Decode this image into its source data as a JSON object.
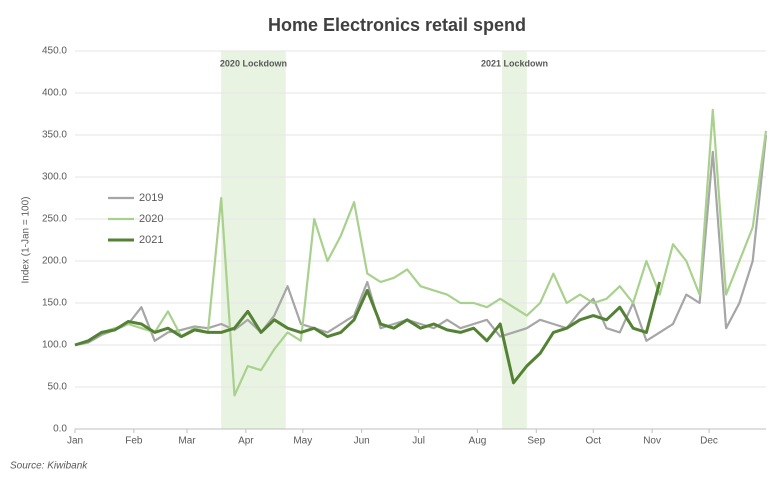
{
  "chart_data": {
    "type": "line",
    "title": "Home Electronics retail spend",
    "y_label": "Index (1-Jan = 100)",
    "source": "Source: Kiwibank",
    "x": [
      1,
      8,
      15,
      22,
      29,
      36,
      43,
      50,
      57,
      64,
      71,
      78,
      85,
      92,
      99,
      106,
      113,
      120,
      127,
      134,
      141,
      148,
      155,
      162,
      169,
      176,
      183,
      190,
      197,
      204,
      211,
      218,
      225,
      232,
      239,
      246,
      253,
      260,
      267,
      274,
      281,
      288,
      295,
      302,
      309,
      316,
      323,
      330,
      337,
      344,
      351,
      358,
      365
    ],
    "xlim": [
      1,
      365
    ],
    "xticks": [
      {
        "value": 1,
        "label": "Jan"
      },
      {
        "value": 32,
        "label": "Feb"
      },
      {
        "value": 60,
        "label": "Mar"
      },
      {
        "value": 91,
        "label": "Apr"
      },
      {
        "value": 121,
        "label": "May"
      },
      {
        "value": 152,
        "label": "Jun"
      },
      {
        "value": 182,
        "label": "Jul"
      },
      {
        "value": 213,
        "label": "Aug"
      },
      {
        "value": 244,
        "label": "Sep"
      },
      {
        "value": 274,
        "label": "Oct"
      },
      {
        "value": 305,
        "label": "Nov"
      },
      {
        "value": 335,
        "label": "Dec"
      }
    ],
    "ylim": [
      0,
      450
    ],
    "yticks": [
      {
        "value": 0,
        "label": "0.0"
      },
      {
        "value": 50,
        "label": "50.0"
      },
      {
        "value": 100,
        "label": "100.0"
      },
      {
        "value": 150,
        "label": "150.0"
      },
      {
        "value": 200,
        "label": "200.0"
      },
      {
        "value": 250,
        "label": "250.0"
      },
      {
        "value": 300,
        "label": "300.0"
      },
      {
        "value": 350,
        "label": "350.0"
      },
      {
        "value": 400,
        "label": "400.0"
      },
      {
        "value": 450,
        "label": "450.0"
      }
    ],
    "grid": true,
    "legend": "left",
    "shaded_regions": [
      {
        "label": "2020 Lockdown",
        "x": [
          78,
          112
        ],
        "color": "#e2f0d9"
      },
      {
        "label": "2021 Lockdown",
        "x": [
          226,
          239
        ],
        "color": "#e2f0d9"
      }
    ],
    "series": [
      {
        "name": "2019",
        "color": "#a6a6a6",
        "values": [
          100,
          103,
          112,
          118,
          125,
          145,
          105,
          115,
          118,
          122,
          120,
          125,
          118,
          130,
          115,
          135,
          170,
          125,
          120,
          115,
          125,
          135,
          175,
          120,
          125,
          130,
          125,
          120,
          130,
          120,
          125,
          130,
          110,
          115,
          120,
          130,
          125,
          120,
          140,
          155,
          120,
          115,
          150,
          105,
          115,
          125,
          160,
          150,
          330,
          120,
          150,
          200,
          350
        ]
      },
      {
        "name": "2020",
        "color": "#a9d18e",
        "values": [
          100,
          105,
          115,
          120,
          125,
          120,
          115,
          140,
          110,
          120,
          115,
          275,
          40,
          75,
          70,
          95,
          115,
          105,
          250,
          200,
          230,
          270,
          185,
          175,
          180,
          190,
          170,
          165,
          160,
          150,
          150,
          145,
          155,
          145,
          135,
          150,
          185,
          150,
          160,
          150,
          155,
          170,
          150,
          200,
          160,
          220,
          200,
          160,
          380,
          160,
          200,
          240,
          355
        ]
      },
      {
        "name": "2021",
        "color": "#548235",
        "values": [
          100,
          105,
          115,
          118,
          128,
          125,
          115,
          120,
          110,
          118,
          115,
          115,
          120,
          140,
          115,
          130,
          120,
          115,
          120,
          110,
          115,
          130,
          165,
          125,
          120,
          130,
          120,
          125,
          118,
          115,
          120,
          105,
          125,
          55,
          75,
          90,
          115,
          120,
          130,
          135,
          130,
          145,
          120,
          115,
          175,
          null,
          null,
          null,
          null,
          null,
          null,
          null,
          null
        ]
      }
    ]
  }
}
